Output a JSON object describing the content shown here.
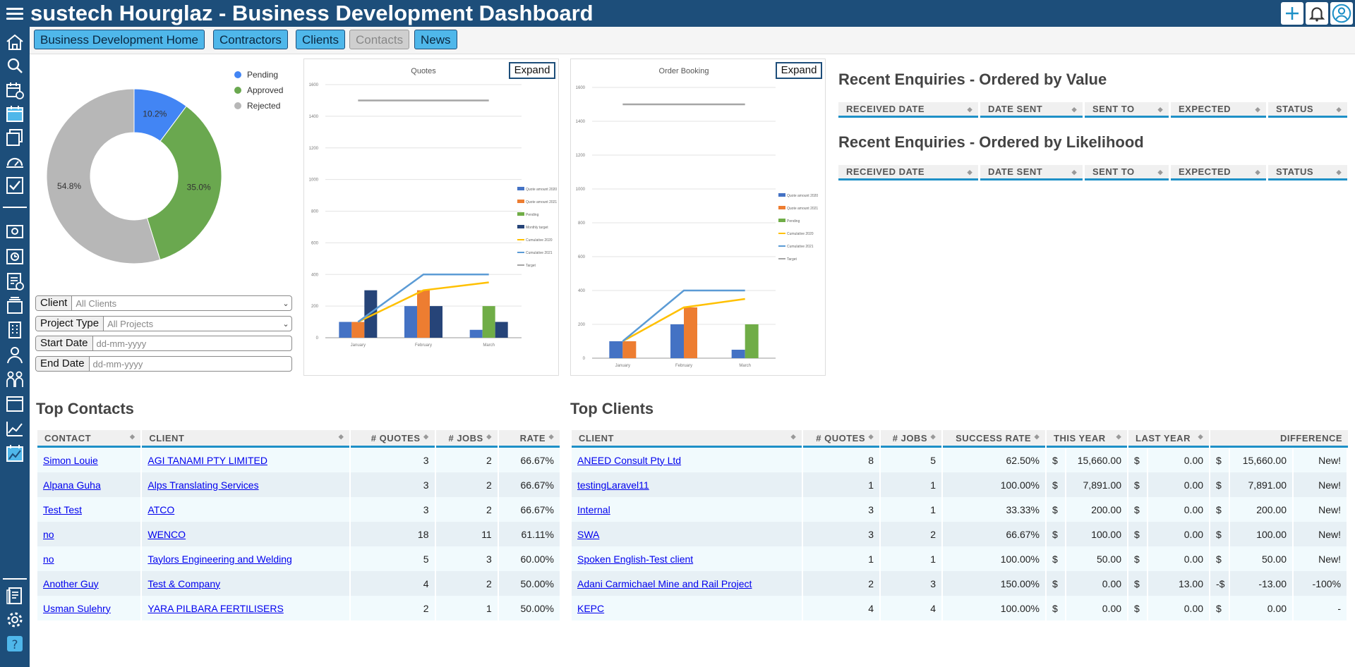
{
  "header": {
    "title": "sustech Hourglaz - Business Development Dashboard"
  },
  "tabs": [
    {
      "label": "Business Development Home",
      "disabled": false
    },
    {
      "label": "Contractors",
      "disabled": false
    },
    {
      "label": "Clients",
      "disabled": false
    },
    {
      "label": "Contacts",
      "disabled": true
    },
    {
      "label": "News",
      "disabled": false
    }
  ],
  "sidebar_icons": [
    "home-icon",
    "search-icon",
    "calendar-clock-icon",
    "calendar-icon",
    "folders-icon",
    "dashboard-gauge-icon",
    "checklist-icon",
    "camera-icon",
    "camera-timer-icon",
    "document-check-icon",
    "stack-icon",
    "building-icon",
    "person-icon",
    "people-icon",
    "window-icon",
    "line-chart-icon",
    "calendar-chart-icon",
    "document-icon",
    "gear-icon",
    "help-icon"
  ],
  "status_chart": {
    "labels": [
      "Pending",
      "Approved",
      "Rejected"
    ],
    "colors": [
      "#4285f4",
      "#6aa84f",
      "#b7b7b7"
    ],
    "values": [
      10.2,
      35.0,
      54.8
    ],
    "value_labels": [
      "10.2%",
      "35.0%",
      "54.8%"
    ]
  },
  "filters": {
    "client": {
      "label": "Client",
      "value": "All Clients"
    },
    "project_type": {
      "label": "Project Type",
      "value": "All Projects"
    },
    "start_date": {
      "label": "Start Date",
      "placeholder": "dd-mm-yyyy"
    },
    "end_date": {
      "label": "End Date",
      "placeholder": "dd-mm-yyyy"
    }
  },
  "expand_label": "Expand",
  "chart_data": [
    {
      "type": "bar",
      "title": "Quotes",
      "categories": [
        "January",
        "February",
        "March"
      ],
      "ylim": [
        0,
        1600
      ],
      "yticks": [
        0,
        200,
        400,
        600,
        800,
        1000,
        1200,
        1400,
        1600
      ],
      "bar_series": [
        {
          "name": "Quote amount 2020",
          "color": "#4472c4",
          "values": [
            100,
            200,
            50
          ]
        },
        {
          "name": "Quote amount 2021",
          "color": "#ed7d31",
          "values": [
            100,
            300,
            null
          ]
        },
        {
          "name": "Pending",
          "color": "#70ad47",
          "values": [
            null,
            null,
            200
          ]
        },
        {
          "name": "Monthly target",
          "color": "#264478",
          "values": [
            300,
            200,
            100
          ]
        }
      ],
      "line_series": [
        {
          "name": "Cumulative 2020",
          "color": "#ffc000",
          "values": [
            100,
            300,
            350
          ]
        },
        {
          "name": "Cumulative 2021",
          "color": "#5b9bd5",
          "values": [
            100,
            400,
            400
          ]
        },
        {
          "name": "Target",
          "color": "#a5a5a5",
          "values": [
            1500,
            1500,
            1500
          ]
        }
      ]
    },
    {
      "type": "bar",
      "title": "Order Booking",
      "categories": [
        "January",
        "February",
        "March"
      ],
      "ylim": [
        0,
        1600
      ],
      "yticks": [
        0,
        200,
        400,
        600,
        800,
        1000,
        1200,
        1400,
        1600
      ],
      "bar_series": [
        {
          "name": "Quote amount 2020",
          "color": "#4472c4",
          "values": [
            100,
            200,
            50
          ]
        },
        {
          "name": "Quote amount 2021",
          "color": "#ed7d31",
          "values": [
            100,
            300,
            null
          ]
        },
        {
          "name": "Pending",
          "color": "#70ad47",
          "values": [
            null,
            null,
            200
          ]
        }
      ],
      "line_series": [
        {
          "name": "Cumulative 2020",
          "color": "#ffc000",
          "values": [
            100,
            300,
            350
          ]
        },
        {
          "name": "Cumulative 2021",
          "color": "#5b9bd5",
          "values": [
            100,
            400,
            400
          ]
        },
        {
          "name": "Target",
          "color": "#a5a5a5",
          "values": [
            1500,
            1500,
            1500
          ]
        }
      ]
    }
  ],
  "enquiries": {
    "by_value_title": "Recent Enquiries - Ordered by Value",
    "by_likelihood_title": "Recent Enquiries - Ordered by Likelihood",
    "columns": [
      "RECEIVED DATE",
      "DATE SENT",
      "SENT TO",
      "EXPECTED",
      "STATUS"
    ]
  },
  "top_contacts": {
    "title": "Top Contacts",
    "columns": [
      "CONTACT",
      "CLIENT",
      "# QUOTES",
      "# JOBS",
      "RATE"
    ],
    "rows": [
      {
        "contact": "Simon Louie",
        "client": "AGI TANAMI PTY LIMITED",
        "quotes": "3",
        "jobs": "2",
        "rate": "66.67%"
      },
      {
        "contact": "Alpana Guha",
        "client": "Alps Translating Services",
        "quotes": "3",
        "jobs": "2",
        "rate": "66.67%"
      },
      {
        "contact": "Test Test",
        "client": "ATCO",
        "quotes": "3",
        "jobs": "2",
        "rate": "66.67%"
      },
      {
        "contact": "no",
        "client": "WENCO",
        "quotes": "18",
        "jobs": "11",
        "rate": "61.11%"
      },
      {
        "contact": "no",
        "client": "Taylors Engineering and Welding",
        "quotes": "5",
        "jobs": "3",
        "rate": "60.00%"
      },
      {
        "contact": "Another Guy",
        "client": "Test & Company",
        "quotes": "4",
        "jobs": "2",
        "rate": "50.00%"
      },
      {
        "contact": "Usman Sulehry",
        "client": "YARA PILBARA FERTILISERS",
        "quotes": "2",
        "jobs": "1",
        "rate": "50.00%"
      }
    ]
  },
  "top_clients": {
    "title": "Top Clients",
    "columns": [
      "CLIENT",
      "# QUOTES",
      "# JOBS",
      "SUCCESS RATE",
      "THIS YEAR",
      "LAST YEAR",
      "DIFFERENCE"
    ],
    "rows": [
      {
        "client": "ANEED Consult Pty Ltd",
        "quotes": "8",
        "jobs": "5",
        "rate": "62.50%",
        "this_cur": "$",
        "this_year": "15,660.00",
        "last_cur": "$",
        "last_year": "0.00",
        "diff_cur": "$",
        "diff": "15,660.00",
        "change": "New!",
        "neg": false
      },
      {
        "client": "testingLaravel11",
        "quotes": "1",
        "jobs": "1",
        "rate": "100.00%",
        "this_cur": "$",
        "this_year": "7,891.00",
        "last_cur": "$",
        "last_year": "0.00",
        "diff_cur": "$",
        "diff": "7,891.00",
        "change": "New!",
        "neg": false
      },
      {
        "client": "Internal",
        "quotes": "3",
        "jobs": "1",
        "rate": "33.33%",
        "this_cur": "$",
        "this_year": "200.00",
        "last_cur": "$",
        "last_year": "0.00",
        "diff_cur": "$",
        "diff": "200.00",
        "change": "New!",
        "neg": false
      },
      {
        "client": "SWA",
        "quotes": "3",
        "jobs": "2",
        "rate": "66.67%",
        "this_cur": "$",
        "this_year": "100.00",
        "last_cur": "$",
        "last_year": "0.00",
        "diff_cur": "$",
        "diff": "100.00",
        "change": "New!",
        "neg": false
      },
      {
        "client": "Spoken English-Test client",
        "quotes": "1",
        "jobs": "1",
        "rate": "100.00%",
        "this_cur": "$",
        "this_year": "50.00",
        "last_cur": "$",
        "last_year": "0.00",
        "diff_cur": "$",
        "diff": "50.00",
        "change": "New!",
        "neg": false
      },
      {
        "client": "Adani Carmichael Mine and Rail Project",
        "quotes": "2",
        "jobs": "3",
        "rate": "150.00%",
        "this_cur": "$",
        "this_year": "0.00",
        "last_cur": "$",
        "last_year": "13.00",
        "diff_cur": "-$",
        "diff": "-13.00",
        "change": "-100%",
        "neg": true
      },
      {
        "client": "KEPC",
        "quotes": "4",
        "jobs": "4",
        "rate": "100.00%",
        "this_cur": "$",
        "this_year": "0.00",
        "last_cur": "$",
        "last_year": "0.00",
        "diff_cur": "$",
        "diff": "0.00",
        "change": "-",
        "neg": false
      }
    ]
  }
}
